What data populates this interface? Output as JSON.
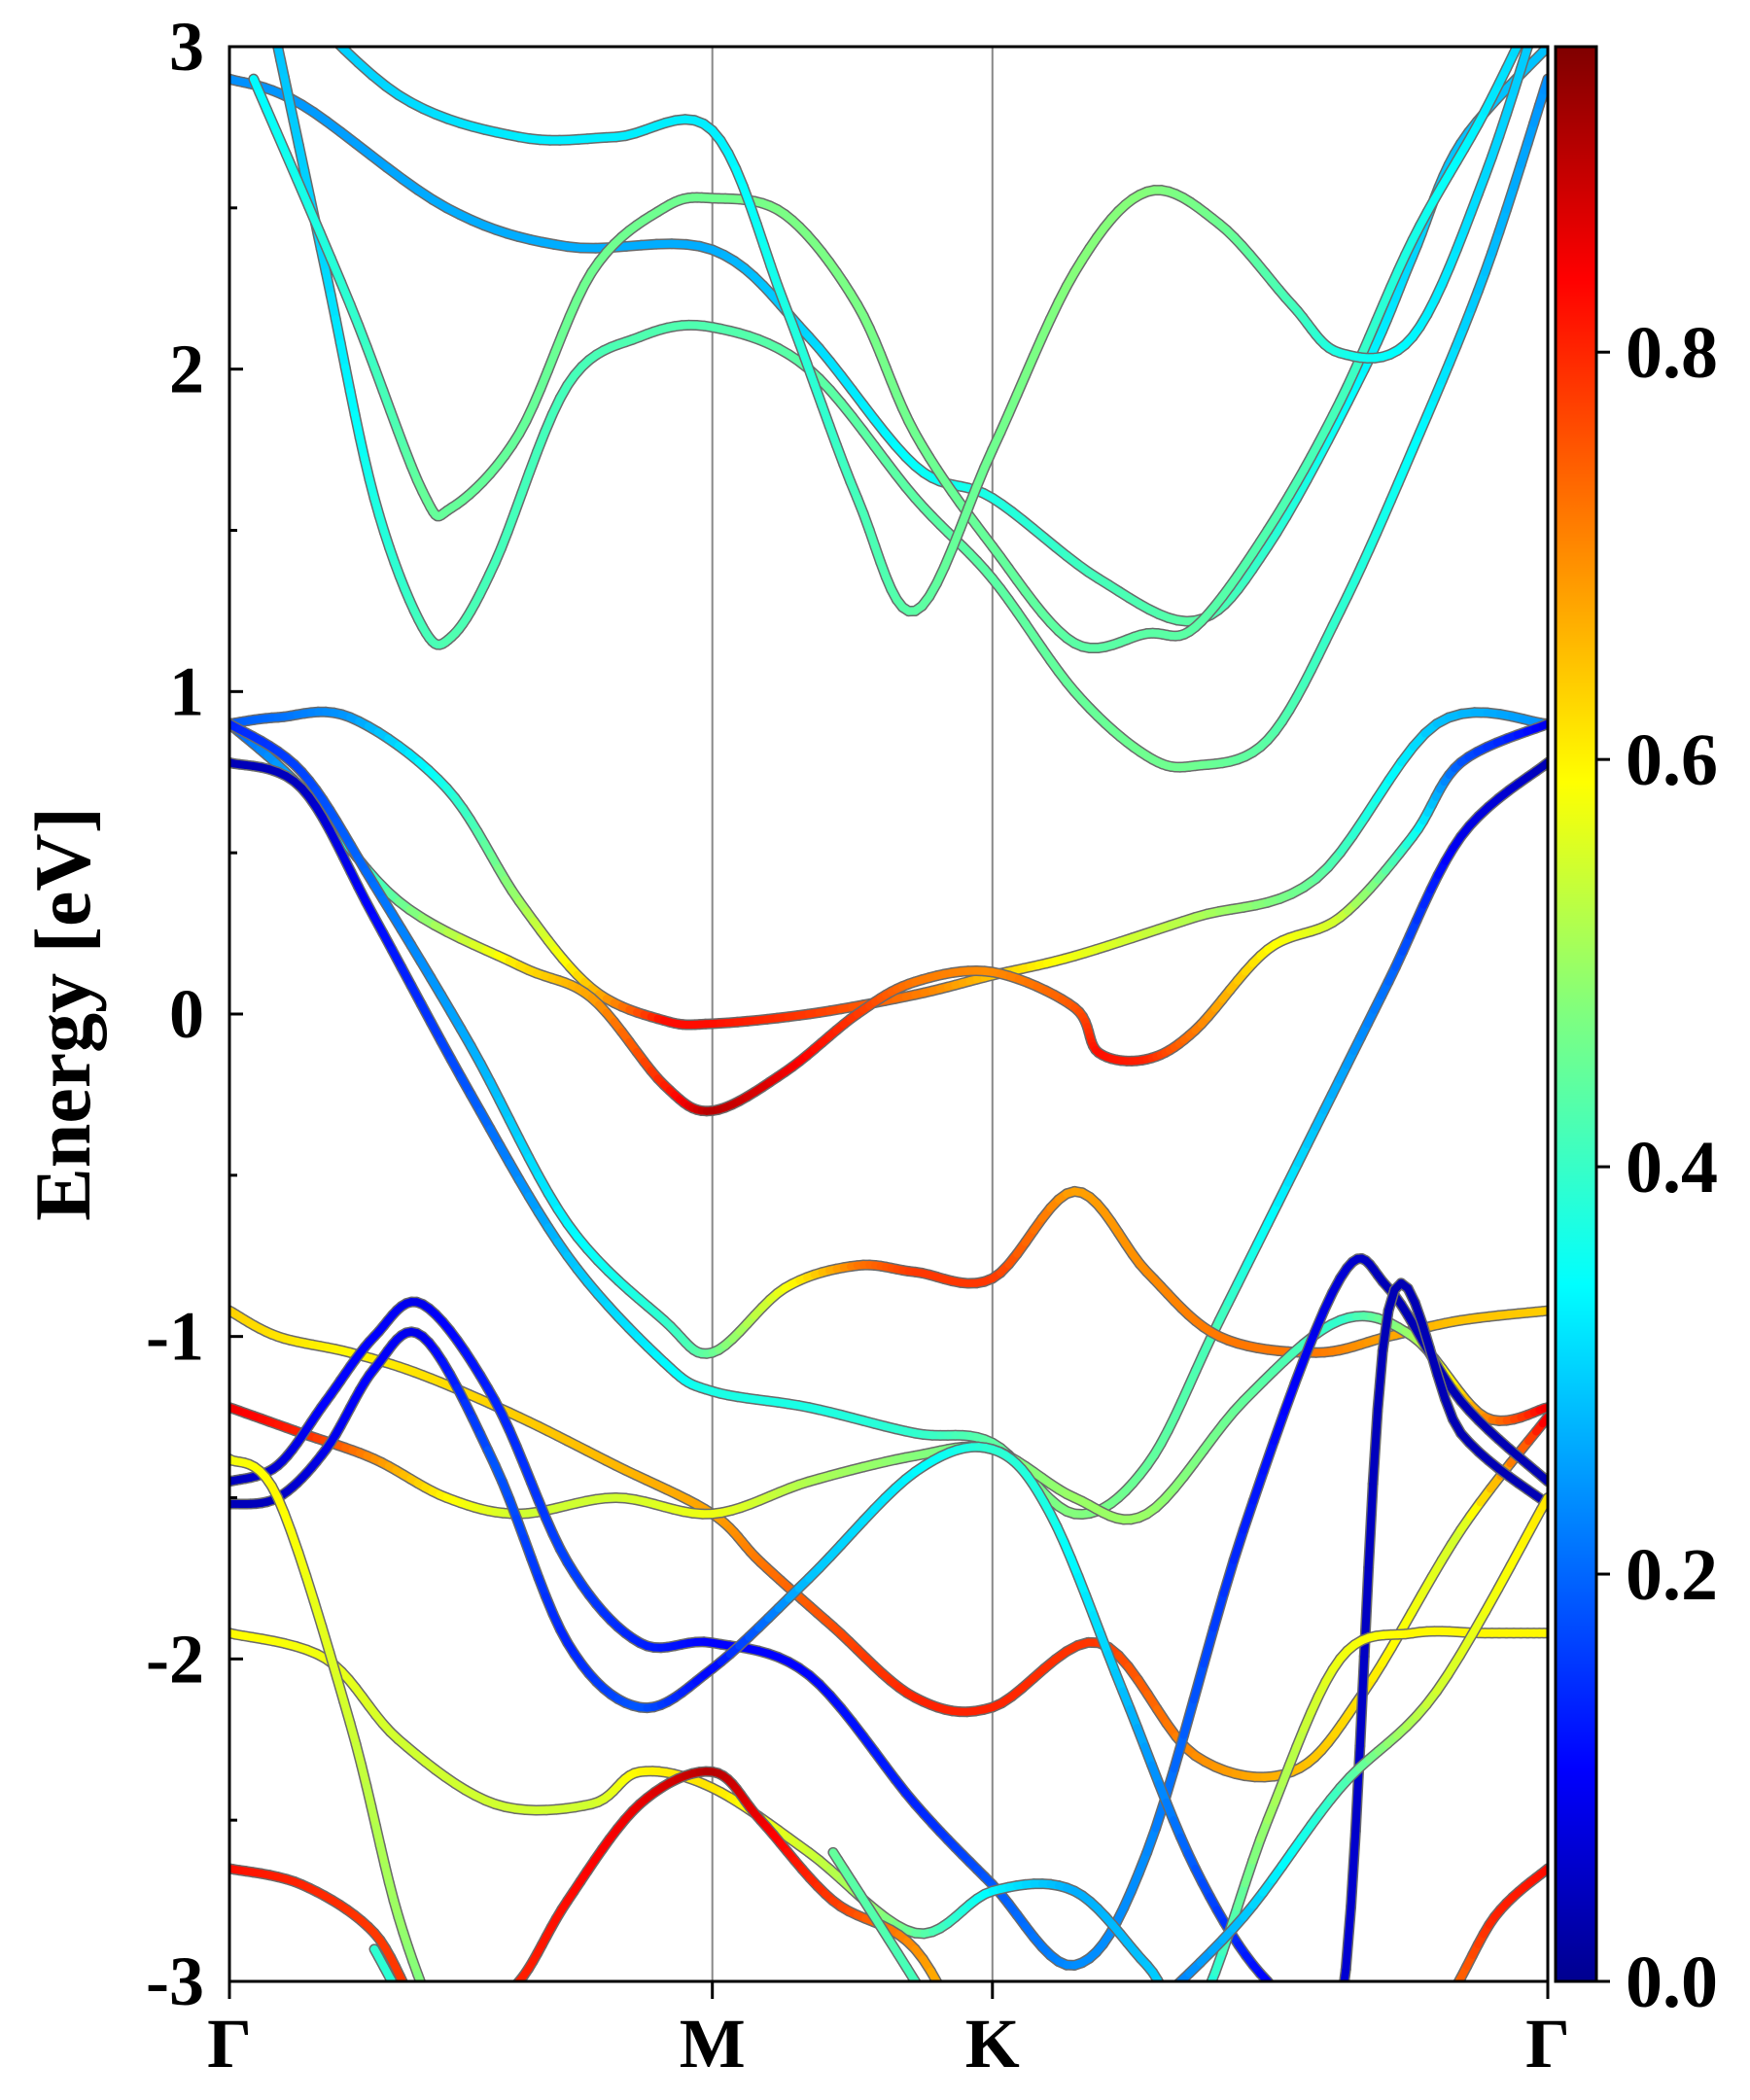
{
  "chart_data": {
    "type": "line",
    "title": "",
    "xlabel": "",
    "ylabel": "Energy [eV]",
    "ylim": [
      -3,
      3
    ],
    "y_ticks": [
      "3",
      "2",
      "1",
      "0",
      "-1",
      "-2",
      "-3"
    ],
    "y_tick_values": [
      3,
      2,
      1,
      0,
      -1,
      -2,
      -3
    ],
    "k_path_positions": [
      0,
      1.0,
      1.58,
      2.73
    ],
    "k_path_labels": [
      "Γ",
      "M",
      "K",
      "Γ"
    ],
    "colorbar": {
      "colormap": "jet",
      "range": [
        0.0,
        0.95
      ],
      "tick_values": [
        0.0,
        0.2,
        0.4,
        0.6,
        0.8
      ],
      "tick_labels": [
        "0.0",
        "0.2",
        "0.4",
        "0.6",
        "0.8"
      ]
    },
    "series": [
      {
        "name": "band-c1",
        "k": [
          0,
          0.15,
          0.45,
          0.7,
          1.0,
          1.2,
          1.42,
          1.58,
          1.8,
          2.0,
          2.15,
          2.35,
          2.45,
          2.55,
          2.73
        ],
        "energy": [
          2.9,
          2.82,
          2.5,
          2.38,
          2.37,
          2.1,
          1.7,
          1.6,
          1.35,
          1.22,
          1.45,
          2.0,
          2.35,
          2.7,
          3.0
        ],
        "weight": [
          0.25,
          0.26,
          0.28,
          0.28,
          0.28,
          0.32,
          0.36,
          0.38,
          0.42,
          0.44,
          0.4,
          0.35,
          0.32,
          0.3,
          0.3
        ]
      },
      {
        "name": "band-c2",
        "k": [
          0.1,
          0.2,
          0.3,
          0.4,
          0.46,
          0.55,
          0.7,
          0.85,
          1.0,
          1.2,
          1.42,
          1.58,
          1.75,
          1.9,
          2.0,
          2.15,
          2.3,
          2.45,
          2.6,
          2.73
        ],
        "energy": [
          3.0,
          2.3,
          1.6,
          1.2,
          1.17,
          1.4,
          1.95,
          2.1,
          2.13,
          2.0,
          1.6,
          1.35,
          1.0,
          0.8,
          0.77,
          0.85,
          1.25,
          1.75,
          2.3,
          2.9
        ],
        "weight": [
          0.3,
          0.32,
          0.38,
          0.42,
          0.43,
          0.42,
          0.42,
          0.43,
          0.43,
          0.44,
          0.44,
          0.44,
          0.45,
          0.46,
          0.46,
          0.44,
          0.4,
          0.36,
          0.3,
          0.25
        ]
      },
      {
        "name": "band-c3",
        "k": [
          0.05,
          0.25,
          0.4,
          0.46,
          0.6,
          0.75,
          0.9,
          1.0,
          1.15,
          1.3,
          1.42,
          1.58,
          1.75,
          1.9,
          2.0,
          2.15,
          2.3,
          2.45,
          2.6,
          2.73
        ],
        "energy": [
          2.9,
          2.2,
          1.62,
          1.57,
          1.8,
          2.3,
          2.5,
          2.53,
          2.48,
          2.2,
          1.8,
          1.45,
          1.15,
          1.18,
          1.2,
          1.5,
          1.9,
          2.4,
          2.8,
          3.2
        ],
        "weight": [
          0.35,
          0.4,
          0.45,
          0.45,
          0.45,
          0.46,
          0.46,
          0.46,
          0.47,
          0.47,
          0.46,
          0.45,
          0.44,
          0.44,
          0.44,
          0.43,
          0.42,
          0.38,
          0.34,
          0.3
        ]
      },
      {
        "name": "band-c4",
        "k": [
          0.1,
          0.35,
          0.6,
          0.8,
          1.0,
          1.15,
          1.3,
          1.42,
          1.58,
          1.75,
          1.9,
          2.05,
          2.2,
          2.3,
          2.45,
          2.6,
          2.73
        ],
        "energy": [
          3.2,
          2.85,
          2.72,
          2.72,
          2.74,
          2.2,
          1.6,
          1.25,
          1.75,
          2.3,
          2.55,
          2.45,
          2.2,
          2.05,
          2.1,
          2.6,
          3.2
        ],
        "weight": [
          0.3,
          0.32,
          0.34,
          0.34,
          0.34,
          0.38,
          0.42,
          0.44,
          0.46,
          0.48,
          0.48,
          0.46,
          0.42,
          0.38,
          0.35,
          0.32,
          0.3
        ]
      },
      {
        "name": "band-v1",
        "k": [
          0,
          0.1,
          0.25,
          0.45,
          0.6,
          0.75,
          0.9,
          1.0,
          1.2,
          1.42,
          1.58,
          1.75,
          2.0,
          2.25,
          2.5,
          2.73
        ],
        "energy": [
          0.9,
          0.92,
          0.92,
          0.7,
          0.35,
          0.08,
          -0.02,
          -0.03,
          0.0,
          0.06,
          0.12,
          0.18,
          0.3,
          0.42,
          0.9,
          0.9
        ],
        "weight": [
          0.2,
          0.22,
          0.26,
          0.38,
          0.5,
          0.65,
          0.82,
          0.82,
          0.78,
          0.72,
          0.65,
          0.58,
          0.52,
          0.45,
          0.3,
          0.25
        ]
      },
      {
        "name": "band-v2",
        "k": [
          0,
          0.15,
          0.35,
          0.6,
          0.75,
          0.9,
          1.0,
          1.15,
          1.3,
          1.42,
          1.58,
          1.75,
          1.8,
          1.9,
          2.0,
          2.15,
          2.3,
          2.45,
          2.55,
          2.73
        ],
        "energy": [
          0.9,
          0.7,
          0.35,
          0.15,
          0.05,
          -0.22,
          -0.3,
          -0.18,
          0.0,
          0.1,
          0.13,
          0.02,
          -0.12,
          -0.14,
          -0.05,
          0.2,
          0.3,
          0.55,
          0.78,
          0.9
        ],
        "weight": [
          0.2,
          0.28,
          0.45,
          0.62,
          0.68,
          0.8,
          0.9,
          0.85,
          0.78,
          0.72,
          0.7,
          0.75,
          0.82,
          0.8,
          0.72,
          0.6,
          0.55,
          0.38,
          0.2,
          0.1
        ]
      },
      {
        "name": "band-v3",
        "k": [
          0,
          0.15,
          0.3,
          0.5,
          0.7,
          0.9,
          1.0,
          1.2,
          1.42,
          1.58,
          1.75,
          1.9,
          2.05,
          2.25,
          2.4,
          2.55,
          2.73
        ],
        "energy": [
          0.78,
          0.7,
          0.3,
          -0.25,
          -0.75,
          -1.08,
          -1.17,
          -1.22,
          -1.3,
          -1.33,
          -1.55,
          -1.4,
          -0.95,
          -0.35,
          0.1,
          0.55,
          0.78
        ],
        "weight": [
          0.05,
          0.06,
          0.12,
          0.2,
          0.3,
          0.35,
          0.38,
          0.38,
          0.4,
          0.44,
          0.48,
          0.45,
          0.42,
          0.3,
          0.22,
          0.1,
          0.05
        ]
      },
      {
        "name": "band-v4",
        "k": [
          0,
          0.15,
          0.3,
          0.5,
          0.7,
          0.9,
          1.0,
          1.15,
          1.3,
          1.42,
          1.58,
          1.75,
          1.9,
          2.05,
          2.25,
          2.4,
          2.55,
          2.73
        ],
        "energy": [
          0.9,
          0.75,
          0.4,
          -0.1,
          -0.65,
          -0.95,
          -1.05,
          -0.85,
          -0.78,
          -0.8,
          -0.82,
          -0.55,
          -0.8,
          -1.0,
          -1.05,
          -1.0,
          -0.95,
          -0.92
        ],
        "weight": [
          0.15,
          0.18,
          0.22,
          0.28,
          0.35,
          0.4,
          0.45,
          0.58,
          0.72,
          0.78,
          0.78,
          0.68,
          0.7,
          0.72,
          0.72,
          0.68,
          0.65,
          0.64
        ]
      },
      {
        "name": "band-v5",
        "k": [
          0,
          0.1,
          0.25,
          0.4,
          0.6,
          0.8,
          1.0,
          1.1,
          1.25,
          1.42,
          1.58,
          1.8,
          2.0,
          2.2,
          2.35,
          2.55,
          2.73
        ],
        "energy": [
          -0.92,
          -1.0,
          -1.05,
          -1.12,
          -1.25,
          -1.4,
          -1.55,
          -1.7,
          -1.9,
          -2.12,
          -2.15,
          -1.95,
          -2.3,
          -2.35,
          -2.1,
          -1.6,
          -1.25
        ],
        "weight": [
          0.64,
          0.62,
          0.6,
          0.62,
          0.64,
          0.66,
          0.68,
          0.72,
          0.76,
          0.8,
          0.8,
          0.78,
          0.7,
          0.66,
          0.62,
          0.55,
          0.85
        ]
      },
      {
        "name": "band-v6",
        "k": [
          0,
          0.15,
          0.3,
          0.45,
          0.6,
          0.8,
          1.0,
          1.2,
          1.42,
          1.58,
          1.75,
          1.9,
          2.1,
          2.3,
          2.45,
          2.6,
          2.73
        ],
        "energy": [
          -1.22,
          -1.3,
          -1.38,
          -1.5,
          -1.55,
          -1.5,
          -1.55,
          -1.45,
          -1.37,
          -1.35,
          -1.5,
          -1.55,
          -1.2,
          -0.95,
          -1.0,
          -1.25,
          -1.22
        ],
        "weight": [
          0.85,
          0.8,
          0.7,
          0.6,
          0.55,
          0.55,
          0.58,
          0.52,
          0.48,
          0.46,
          0.5,
          0.5,
          0.45,
          0.4,
          0.5,
          0.7,
          0.85
        ]
      },
      {
        "name": "band-v7",
        "k": [
          0,
          0.1,
          0.2,
          0.3,
          0.4,
          0.55,
          0.7,
          0.85,
          1.0,
          1.2,
          1.42,
          1.58,
          1.75,
          1.9,
          2.1,
          2.3,
          2.4,
          2.55,
          2.73
        ],
        "energy": [
          -1.45,
          -1.4,
          -1.2,
          -1.0,
          -0.9,
          -1.2,
          -1.7,
          -1.95,
          -1.95,
          -2.05,
          -2.45,
          -2.7,
          -2.95,
          -2.6,
          -1.6,
          -0.82,
          -0.85,
          -1.2,
          -1.45
        ],
        "weight": [
          0.05,
          0.08,
          0.12,
          0.12,
          0.1,
          0.15,
          0.18,
          0.15,
          0.12,
          0.12,
          0.15,
          0.2,
          0.25,
          0.25,
          0.15,
          0.08,
          0.05,
          0.05,
          0.05
        ]
      },
      {
        "name": "band-v8",
        "k": [
          0,
          0.1,
          0.2,
          0.3,
          0.4,
          0.55,
          0.7,
          0.85,
          1.0,
          1.2,
          1.42,
          1.58,
          1.7,
          1.85,
          2.0,
          2.15,
          2.3,
          2.4,
          2.55,
          2.73
        ],
        "energy": [
          -1.52,
          -1.5,
          -1.35,
          -1.1,
          -1.0,
          -1.4,
          -1.95,
          -2.15,
          -2.03,
          -1.75,
          -1.42,
          -1.35,
          -1.55,
          -2.1,
          -2.65,
          -3.0,
          -3.1,
          -0.92,
          -1.3,
          -1.52
        ],
        "weight": [
          0.05,
          0.06,
          0.1,
          0.12,
          0.1,
          0.2,
          0.15,
          0.2,
          0.12,
          0.3,
          0.35,
          0.4,
          0.38,
          0.3,
          0.2,
          0.12,
          0.08,
          0.05,
          0.05,
          0.05
        ]
      },
      {
        "name": "band-v9",
        "k": [
          0,
          0.2,
          0.35,
          0.55,
          0.75,
          0.85,
          1.0,
          1.2,
          1.42,
          1.58,
          1.75,
          1.9,
          2.0,
          2.15,
          2.3,
          2.45,
          2.6,
          2.73
        ],
        "energy": [
          -1.92,
          -2.0,
          -2.25,
          -2.45,
          -2.45,
          -2.35,
          -2.4,
          -2.6,
          -2.85,
          -2.72,
          -2.72,
          -2.95,
          -3.1,
          -2.5,
          -2.0,
          -1.92,
          -1.92,
          -1.92
        ],
        "weight": [
          0.6,
          0.58,
          0.55,
          0.55,
          0.55,
          0.6,
          0.62,
          0.55,
          0.45,
          0.35,
          0.28,
          0.3,
          0.35,
          0.5,
          0.58,
          0.6,
          0.6,
          0.6
        ]
      },
      {
        "name": "band-v10",
        "k": [
          0,
          0.15,
          0.3,
          0.4,
          0.5,
          0.6,
          0.7,
          0.85,
          1.0,
          1.1,
          1.25,
          1.42,
          1.58,
          1.75,
          1.9,
          2.05,
          2.2,
          2.35,
          2.5,
          2.62,
          2.73
        ],
        "energy": [
          -2.65,
          -2.7,
          -2.85,
          -3.1,
          -3.1,
          -3.0,
          -2.75,
          -2.45,
          -2.35,
          -2.5,
          -2.75,
          -2.9,
          -3.3,
          -3.4,
          -3.4,
          -3.4,
          -3.3,
          -3.2,
          -3.1,
          -2.8,
          -2.65
        ],
        "weight": [
          0.82,
          0.8,
          0.78,
          0.78,
          0.78,
          0.8,
          0.82,
          0.85,
          0.9,
          0.85,
          0.78,
          0.7,
          0.6,
          0.55,
          0.5,
          0.5,
          0.55,
          0.6,
          0.7,
          0.8,
          0.82
        ]
      },
      {
        "name": "band-v11",
        "k": [
          0,
          0.1,
          0.25,
          0.35,
          0.45,
          0.55
        ],
        "energy": [
          -1.38,
          -1.5,
          -2.2,
          -2.8,
          -3.2,
          -3.5
        ],
        "weight": [
          0.58,
          0.6,
          0.55,
          0.5,
          0.45,
          0.4
        ]
      },
      {
        "name": "band-v12",
        "k": [
          0.3,
          0.45,
          0.6
        ],
        "energy": [
          -2.9,
          -3.3,
          -3.6
        ],
        "weight": [
          0.4,
          0.38,
          0.35
        ]
      },
      {
        "name": "band-v13",
        "k": [
          1.25,
          1.42,
          1.58
        ],
        "energy": [
          -2.6,
          -3.0,
          -3.4
        ],
        "weight": [
          0.45,
          0.42,
          0.4
        ]
      },
      {
        "name": "band-v14",
        "k": [
          1.9,
          2.1,
          2.3,
          2.5,
          2.73
        ],
        "energy": [
          -3.1,
          -2.8,
          -2.4,
          -2.1,
          -1.5
        ],
        "weight": [
          0.2,
          0.3,
          0.42,
          0.55,
          0.62
        ]
      }
    ]
  }
}
